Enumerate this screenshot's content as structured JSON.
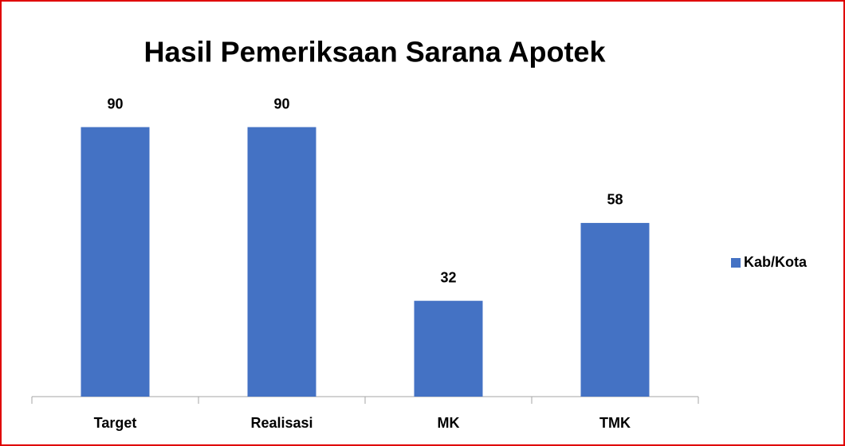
{
  "chart_data": {
    "type": "bar",
    "title": "Hasil Pemeriksaan Sarana Apotek",
    "categories": [
      "Target",
      "Realisasi",
      "MK",
      "TMK"
    ],
    "series": [
      {
        "name": "Kab/Kota",
        "color": "#4472c4",
        "values": [
          90,
          90,
          32,
          58
        ]
      }
    ],
    "ylim": [
      0,
      100
    ],
    "legend": "right"
  }
}
